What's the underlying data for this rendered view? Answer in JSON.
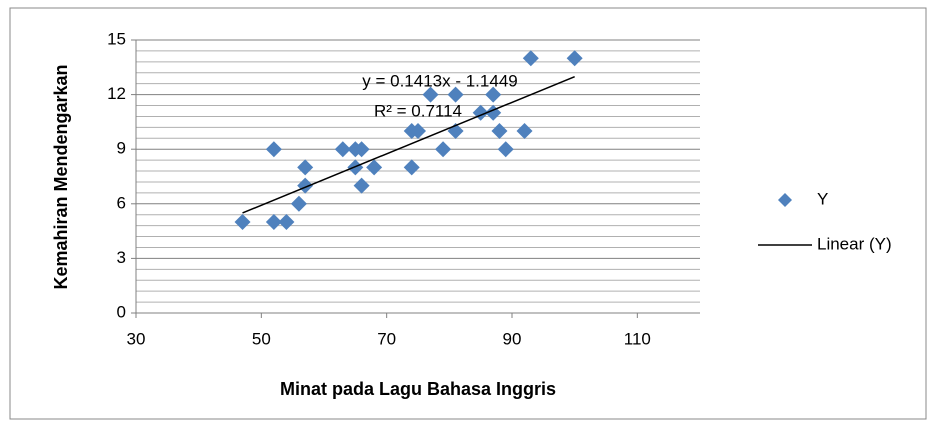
{
  "chart_data": {
    "type": "scatter",
    "x_label": "Minat pada Lagu Bahasa Inggris",
    "y_label": "Kemahiran Mendengarkan",
    "series": [
      {
        "name": "Y",
        "color": "#4f81bd",
        "x": [
          47,
          52,
          52,
          54,
          56,
          57,
          57,
          63,
          65,
          66,
          65,
          66,
          68,
          74,
          75,
          74,
          77,
          79,
          81,
          81,
          85,
          87,
          87,
          88,
          89,
          92,
          93,
          100
        ],
        "values": [
          5,
          9,
          5,
          5,
          6,
          8,
          7,
          9,
          9,
          9,
          8,
          7,
          8,
          10,
          10,
          8,
          12,
          9,
          12,
          10,
          11,
          12,
          11,
          10,
          9,
          10,
          14,
          14
        ]
      }
    ],
    "trendline": {
      "name": "Linear (Y)",
      "color": "#000000",
      "slope": 0.1413,
      "intercept": -1.1449,
      "equation": "y = 0.1413x - 1.1449",
      "r2_label": "R² = 0.7114"
    },
    "xlim": [
      30,
      120
    ],
    "xticks": [
      30,
      50,
      70,
      90,
      110
    ],
    "ylim": [
      0,
      15
    ],
    "yticks": [
      0,
      3,
      6,
      9,
      12,
      15
    ],
    "grid": true,
    "minor_grid": true,
    "legend": "right"
  }
}
